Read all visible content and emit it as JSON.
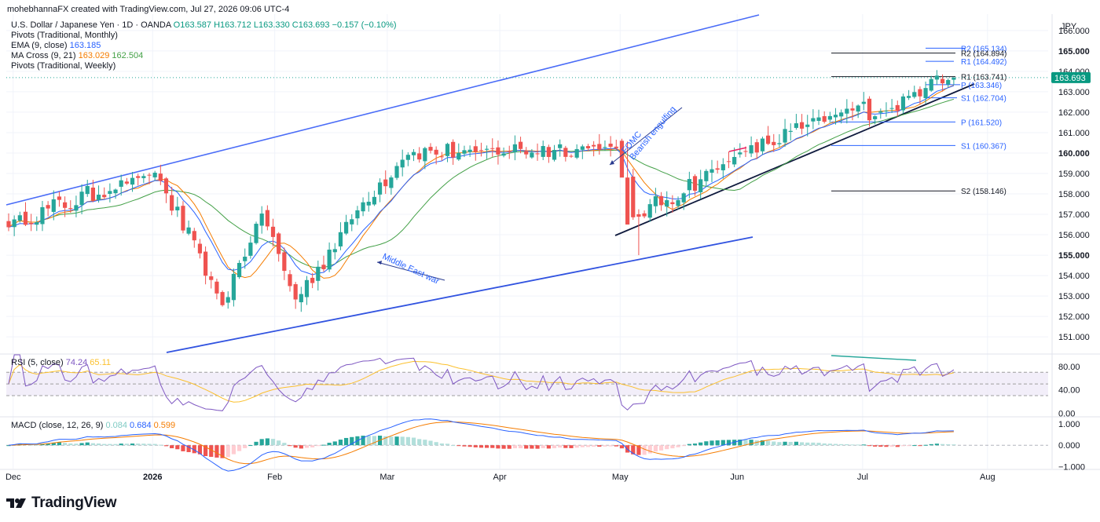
{
  "attribution": "mohebhannaFX created with TradingView.com, Jul 27, 2026 09:06 UTC-4",
  "header": {
    "symbol_line": "U.S. Dollar / Japanese Yen · 1D · OANDA",
    "ohlc": {
      "o": "O163.587",
      "h": "H163.712",
      "l": "L163.330",
      "c": "C163.693",
      "chg": "−0.157 (−0.10%)"
    },
    "indicators": [
      {
        "label": "Pivots (Traditional, Monthly)",
        "values": []
      },
      {
        "label": "EMA (9, close)",
        "values": [
          {
            "text": "163.185",
            "color": "#2962ff"
          }
        ]
      },
      {
        "label": "MA Cross (9, 21)",
        "values": [
          {
            "text": "163.029",
            "color": "#f57c00"
          },
          {
            "text": "162.504",
            "color": "#43a047"
          }
        ]
      },
      {
        "label": "Pivots (Traditional, Weekly)",
        "values": []
      }
    ]
  },
  "currency": "JPY",
  "price_badge": "163.693",
  "brand": "TradingView",
  "colors": {
    "up": "#26a69a",
    "down": "#ef5350",
    "ema": "#2962ff",
    "ma9": "#f57c00",
    "ma21": "#43a047",
    "rsi": "#7e57c2",
    "rsi_ma": "#fbc02d",
    "channel": "#4a6cf7"
  },
  "chart_data": [
    {
      "type": "candlestick",
      "title": "U.S. Dollar / Japanese Yen · 1D · OANDA",
      "ylim": [
        150.2,
        166.8
      ],
      "y_ticks": [
        "166.000",
        "165.000",
        "164.000",
        "163.000",
        "162.000",
        "161.000",
        "160.000",
        "159.000",
        "158.000",
        "157.000",
        "156.000",
        "155.000",
        "154.000",
        "153.000",
        "152.000",
        "151.000"
      ],
      "x_ticks": [
        "Dec",
        "2026",
        "Feb",
        "Mar",
        "Apr",
        "May",
        "Jun",
        "Jul",
        "Aug"
      ],
      "x_tick_positions": [
        0.8,
        25.6,
        47.3,
        67.3,
        87.3,
        108.7,
        129.5,
        151.8,
        174.0
      ],
      "pivots": [
        {
          "label": "R2 (165.134)",
          "value": 165.134
        },
        {
          "label": "R2 (164.894)",
          "value": 164.894
        },
        {
          "label": "R1 (164.492)",
          "value": 164.492
        },
        {
          "label": "R1 (163.741)",
          "value": 163.741
        },
        {
          "label": "P (163.346)",
          "value": 163.346
        },
        {
          "label": "S1 (162.704)",
          "value": 162.704
        },
        {
          "label": "P (161.520)",
          "value": 161.52
        },
        {
          "label": "S1 (160.367)",
          "value": 160.367
        },
        {
          "label": "S2 (158.146)",
          "value": 158.146
        }
      ],
      "annotations": [
        "FOMC Bearish engulfing",
        "Middle East war"
      ],
      "key_closes": [
        {
          "date": "Dec 1",
          "close": 156.5
        },
        {
          "date": "Jan 9",
          "close": 159.1
        },
        {
          "date": "Jan 27",
          "close": 152.6
        },
        {
          "date": "Feb 6",
          "close": 157.1
        },
        {
          "date": "Feb 13",
          "close": 152.8
        },
        {
          "date": "Mar 2",
          "close": 157.6
        },
        {
          "date": "Mar 13",
          "close": 160.0
        },
        {
          "date": "Mar 27",
          "close": 160.1
        },
        {
          "date": "Apr 30",
          "close": 160.3
        },
        {
          "date": "May 4",
          "close": 156.8
        },
        {
          "date": "Jun 1",
          "close": 159.9
        },
        {
          "date": "Jun 30",
          "close": 162.1
        },
        {
          "date": "Jul 13",
          "close": 162.2
        },
        {
          "date": "Jul 23",
          "close": 163.9
        },
        {
          "date": "Jul 27",
          "close": 163.693
        }
      ]
    },
    {
      "type": "line",
      "title": "RSI (5, close)",
      "series": [
        {
          "name": "RSI (5, close)",
          "last": 74.24
        },
        {
          "name": "RSI MA",
          "last": 65.11
        }
      ],
      "y_ticks": [
        "80.00",
        "40.00",
        "0.00"
      ],
      "levels": [
        70,
        50,
        30
      ],
      "ylim": [
        -5,
        100
      ]
    },
    {
      "type": "bar",
      "title": "MACD (close, 12, 26, 9)",
      "series": [
        {
          "name": "Histogram",
          "last": 0.084
        },
        {
          "name": "MACD",
          "last": 0.684
        },
        {
          "name": "Signal",
          "last": 0.599
        }
      ],
      "y_ticks": [
        "1.000",
        "0.000",
        "−1.000"
      ],
      "ylim": [
        -1.1,
        1.3
      ]
    }
  ]
}
